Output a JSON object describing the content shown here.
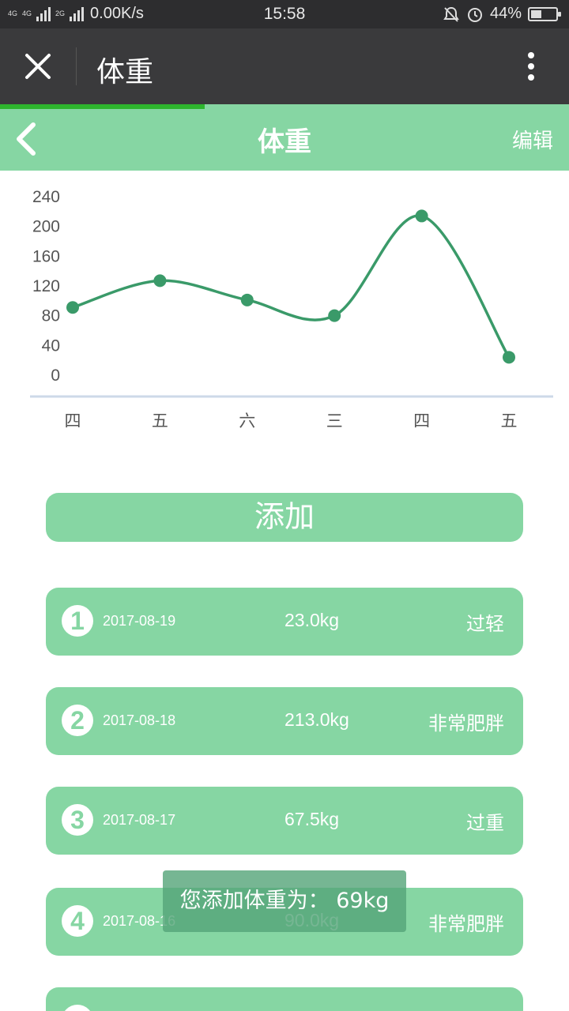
{
  "status_bar": {
    "network_small": "4G",
    "network_small_b": "4G",
    "network_small_c": "2G",
    "speed": "0.00K/s",
    "time": "15:58",
    "battery": "44%",
    "battery_level": 0.44,
    "icons": [
      "mute-bell-icon",
      "alarm-clock-icon",
      "battery-icon"
    ]
  },
  "title_bar": {
    "close_icon": "close-icon",
    "title": "体重",
    "more_icon": "more-vertical-icon",
    "load_progress": 0.36
  },
  "app_header": {
    "back_icon": "chevron-left-icon",
    "title": "体重",
    "edit_label": "编辑"
  },
  "chart_data": {
    "type": "line",
    "categories": [
      "四",
      "五",
      "六",
      "三",
      "四",
      "五"
    ],
    "values": [
      90.0,
      126.0,
      100.0,
      79.0,
      213.0,
      23.0
    ],
    "y_ticks": [
      "240",
      "200",
      "160",
      "120",
      "80",
      "40",
      "0"
    ],
    "ylim": [
      0,
      240
    ],
    "smooth": true,
    "grid": false,
    "colors": {
      "line": "#3a9a69",
      "axis": "#cdd9e8",
      "tick_text": "#555555"
    }
  },
  "add_button": {
    "label": "添加"
  },
  "records": [
    {
      "index": "1",
      "date": "2017-08-19",
      "weight": "23.0kg",
      "status": "过轻"
    },
    {
      "index": "2",
      "date": "2017-08-18",
      "weight": "213.0kg",
      "status": "非常肥胖"
    },
    {
      "index": "3",
      "date": "2017-08-17",
      "weight": "67.5kg",
      "status": "过重"
    },
    {
      "index": "4",
      "date": "2017-08-16",
      "weight": "90.0kg",
      "status": "非常肥胖"
    }
  ],
  "toast": {
    "message": "您添加体重为： 69kg"
  },
  "colors": {
    "accent": "#86d6a3",
    "titlebar": "#3a3a3c",
    "statusbar": "#2d2d2f",
    "progress": "#2db52d"
  }
}
